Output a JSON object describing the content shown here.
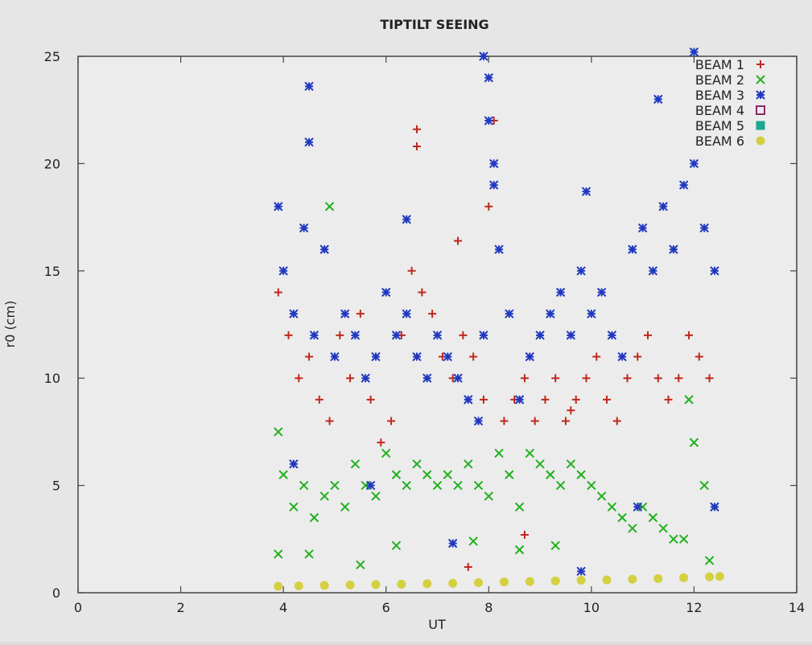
{
  "chart_data": {
    "type": "scatter",
    "title": "TIPTILT SEEING",
    "x_label": "UT",
    "y_label": "r0 (cm)",
    "xlim": [
      0,
      14
    ],
    "ylim": [
      0,
      25
    ],
    "xticks": [
      0,
      2,
      4,
      6,
      8,
      10,
      12,
      14
    ],
    "yticks": [
      0,
      5,
      10,
      15,
      20,
      25
    ],
    "legend_position": "top-right",
    "series": [
      {
        "name": "BEAM 1",
        "marker": "plus",
        "color": "#c0281e",
        "x": [
          3.9,
          4.1,
          4.3,
          4.5,
          4.7,
          4.9,
          5.1,
          5.3,
          5.5,
          5.7,
          5.9,
          6.1,
          6.3,
          6.5,
          6.7,
          6.9,
          7.1,
          7.3,
          7.5,
          7.7,
          7.9,
          8.0,
          8.1,
          8.3,
          8.5,
          8.7,
          8.9,
          9.1,
          9.3,
          9.5,
          9.7,
          9.9,
          10.1,
          10.3,
          10.5,
          10.7,
          10.9,
          11.1,
          11.3,
          11.5,
          11.7,
          11.9,
          12.1,
          12.3,
          6.6,
          6.6,
          7.4,
          7.6,
          8.7,
          9.6
        ],
        "values": [
          14,
          12,
          10,
          11,
          9,
          8,
          12,
          10,
          13,
          9,
          7,
          8,
          12,
          15,
          14,
          13,
          11,
          10,
          12,
          11,
          9,
          18,
          22,
          8,
          9,
          10,
          8,
          9,
          10,
          8,
          9,
          10,
          11,
          9,
          8,
          10,
          11,
          12,
          10,
          9,
          10,
          12,
          11,
          10,
          21.6,
          20.8,
          16.4,
          1.2,
          2.7,
          8.5
        ]
      },
      {
        "name": "BEAM 2",
        "marker": "cross",
        "color": "#22b020",
        "x": [
          3.9,
          4.0,
          4.2,
          4.4,
          4.6,
          4.8,
          5.0,
          5.2,
          5.4,
          5.6,
          5.8,
          6.0,
          6.2,
          6.4,
          6.6,
          6.8,
          7.0,
          7.2,
          7.4,
          7.6,
          7.8,
          8.0,
          8.2,
          8.4,
          8.6,
          8.8,
          9.0,
          9.2,
          9.4,
          9.6,
          9.8,
          10.0,
          10.2,
          10.4,
          10.6,
          10.8,
          11.0,
          11.2,
          11.4,
          11.6,
          11.8,
          12.0,
          12.2,
          12.4,
          4.9,
          3.9,
          4.5,
          5.5,
          6.2,
          7.7,
          8.6,
          9.3,
          11.9,
          12.3
        ],
        "values": [
          7.5,
          5.5,
          4,
          5,
          3.5,
          4.5,
          5,
          4,
          6,
          5,
          4.5,
          6.5,
          5.5,
          5,
          6,
          5.5,
          5,
          5.5,
          5,
          6,
          5,
          4.5,
          6.5,
          5.5,
          4,
          6.5,
          6,
          5.5,
          5,
          6,
          5.5,
          5,
          4.5,
          4,
          3.5,
          3,
          4,
          3.5,
          3,
          2.5,
          2.5,
          7,
          5,
          4,
          18,
          1.8,
          1.8,
          1.3,
          2.2,
          2.4,
          2,
          2.2,
          9,
          1.5
        ]
      },
      {
        "name": "BEAM 3",
        "marker": "star",
        "color": "#2038c0",
        "x": [
          3.9,
          4.0,
          4.2,
          4.4,
          4.5,
          4.6,
          4.8,
          5.0,
          5.2,
          5.4,
          5.6,
          5.8,
          6.0,
          6.2,
          6.4,
          6.6,
          6.8,
          7.0,
          7.2,
          7.4,
          7.6,
          7.8,
          7.9,
          8.0,
          8.1,
          8.2,
          8.4,
          8.6,
          8.8,
          9.0,
          9.2,
          9.4,
          9.6,
          9.8,
          10.0,
          10.2,
          10.4,
          10.6,
          10.8,
          11.0,
          11.2,
          11.4,
          11.6,
          11.8,
          12.0,
          12.2,
          12.4,
          4.5,
          6.4,
          7.9,
          8.0,
          8.1,
          9.9,
          12.0,
          11.3,
          4.2,
          5.7,
          7.3,
          9.8,
          10.9,
          12.4
        ],
        "values": [
          18,
          15,
          13,
          17,
          21,
          12,
          16,
          11,
          13,
          12,
          10,
          11,
          14,
          12,
          13,
          11,
          10,
          12,
          11,
          10,
          9,
          8,
          12,
          24,
          20,
          16,
          13,
          9,
          11,
          12,
          13,
          14,
          12,
          15,
          13,
          14,
          12,
          11,
          16,
          17,
          15,
          18,
          16,
          19,
          20,
          17,
          15,
          23.6,
          17.4,
          25,
          22,
          19,
          18.7,
          25.2,
          23,
          6,
          5,
          2.3,
          1,
          4,
          4
        ]
      },
      {
        "name": "BEAM 4",
        "marker": "square",
        "color": "#8a2a6a",
        "x": [],
        "values": []
      },
      {
        "name": "BEAM 5",
        "marker": "filled-square",
        "color": "#1aa890",
        "x": [],
        "values": []
      },
      {
        "name": "BEAM 6",
        "marker": "circle",
        "color": "#d4d040",
        "x": [
          3.9,
          4.3,
          4.8,
          5.3,
          5.8,
          6.3,
          6.8,
          7.3,
          7.8,
          8.3,
          8.8,
          9.3,
          9.8,
          10.3,
          10.8,
          11.3,
          11.8,
          12.3,
          12.5
        ],
        "values": [
          0.3,
          0.32,
          0.34,
          0.36,
          0.38,
          0.4,
          0.42,
          0.44,
          0.47,
          0.5,
          0.52,
          0.55,
          0.58,
          0.6,
          0.63,
          0.66,
          0.7,
          0.74,
          0.76
        ]
      }
    ]
  }
}
